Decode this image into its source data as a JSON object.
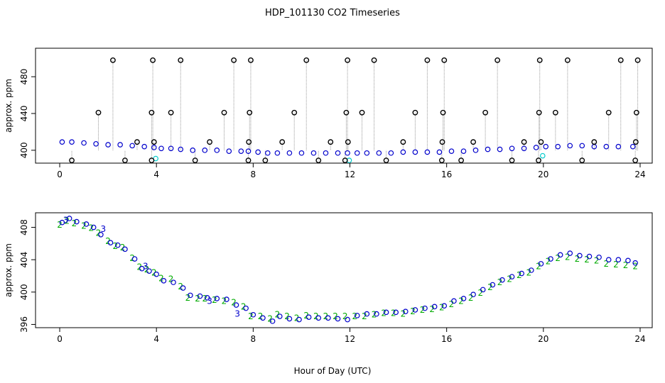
{
  "chart_data": [
    {
      "type": "scatter",
      "title": "HDP_101130  CO2 Timeseries",
      "xlabel": "",
      "ylabel": "approx. ppm",
      "xlim": [
        -1,
        24.5
      ],
      "ylim": [
        386,
        511
      ],
      "x_ticks": [
        0,
        4,
        8,
        12,
        16,
        20,
        24
      ],
      "y_ticks": [
        400,
        440,
        480
      ],
      "grid": false,
      "series": [
        {
          "color": "#0000cc",
          "marker": "circle",
          "x": [
            0.1,
            0.5,
            1.0,
            1.5,
            2.0,
            2.5,
            3.0,
            3.5,
            3.9,
            4.2,
            4.6,
            5.0,
            5.5,
            6.0,
            6.5,
            7.0,
            7.5,
            7.8,
            8.2,
            8.6,
            9.0,
            9.5,
            10.0,
            10.5,
            11.0,
            11.5,
            11.9,
            12.3,
            12.7,
            13.2,
            13.7,
            14.2,
            14.7,
            15.2,
            15.7,
            16.2,
            16.7,
            17.2,
            17.7,
            18.2,
            18.7,
            19.2,
            19.7,
            20.1,
            20.6,
            21.1,
            21.6,
            22.1,
            22.6,
            23.1,
            23.7
          ],
          "y": [
            409,
            409,
            408,
            407,
            406,
            406,
            405,
            404,
            403,
            402,
            402,
            401,
            400,
            400,
            400,
            399,
            399,
            399,
            398,
            397,
            397,
            397,
            397,
            397,
            397,
            397,
            397,
            397,
            397,
            397,
            397,
            398,
            398,
            398,
            398,
            399,
            399,
            400,
            401,
            401,
            402,
            402,
            403,
            404,
            404,
            405,
            405,
            404,
            404,
            404,
            404
          ]
        },
        {
          "color": "#00cccc",
          "marker": "circle",
          "x": [
            3.97,
            11.97,
            19.97
          ],
          "y": [
            391,
            389,
            394
          ]
        },
        {
          "color": "#000000",
          "marker": "circle",
          "x": [
            0.5,
            1.6,
            2.2,
            2.7,
            3.2,
            3.8,
            3.8,
            3.85,
            3.9,
            4.6,
            5.0,
            5.6,
            6.2,
            6.8,
            7.2,
            7.8,
            7.82,
            7.85,
            7.9,
            8.5,
            9.2,
            9.7,
            10.2,
            10.7,
            11.2,
            11.8,
            11.85,
            11.9,
            11.92,
            12.5,
            13.0,
            13.5,
            14.2,
            14.7,
            15.2,
            15.8,
            15.82,
            15.85,
            15.9,
            16.6,
            17.1,
            17.6,
            18.1,
            18.7,
            19.2,
            19.8,
            19.82,
            19.85,
            19.9,
            20.5,
            21.0,
            21.6,
            22.1,
            22.7,
            23.2,
            23.8,
            23.82,
            23.85,
            23.9
          ],
          "y": [
            389,
            441,
            498,
            389,
            409,
            389,
            441,
            498,
            409,
            441,
            498,
            389,
            409,
            441,
            498,
            389,
            409,
            441,
            498,
            389,
            409,
            441,
            498,
            389,
            409,
            389,
            441,
            498,
            409,
            441,
            498,
            389,
            409,
            441,
            498,
            389,
            409,
            441,
            498,
            389,
            409,
            441,
            498,
            389,
            409,
            389,
            441,
            498,
            409,
            441,
            498,
            389,
            409,
            441,
            498,
            389,
            409,
            441,
            498
          ]
        }
      ]
    },
    {
      "type": "scatter",
      "title": "",
      "xlabel": "Hour of Day (UTC)",
      "ylabel": "approx. ppm",
      "xlim": [
        -1,
        24.5
      ],
      "ylim": [
        395.6,
        409.8
      ],
      "x_ticks": [
        0,
        4,
        8,
        12,
        16,
        20,
        24
      ],
      "y_ticks": [
        396,
        400,
        404,
        408
      ],
      "grid": false,
      "series": [
        {
          "color": "#00aa00",
          "marker": "2",
          "x": [
            0.0,
            0.3,
            0.6,
            1.0,
            1.3,
            1.6,
            2.0,
            2.3,
            2.6,
            3.0,
            3.3,
            3.6,
            3.9,
            4.2,
            4.6,
            5.0,
            5.3,
            5.7,
            6.0,
            6.4,
            6.8,
            7.2,
            7.6,
            7.9,
            8.3,
            8.7,
            9.0,
            9.4,
            9.8,
            10.2,
            10.6,
            11.0,
            11.4,
            11.8,
            12.2,
            12.6,
            13.0,
            13.4,
            13.8,
            14.2,
            14.6,
            15.0,
            15.4,
            15.8,
            16.2,
            16.6,
            17.0,
            17.4,
            17.8,
            18.2,
            18.6,
            19.0,
            19.4,
            19.8,
            20.2,
            20.6,
            21.0,
            21.4,
            21.8,
            22.2,
            22.6,
            23.0,
            23.4,
            23.8
          ],
          "y": [
            408.3,
            408.8,
            408.5,
            408.2,
            407.9,
            407.3,
            406.3,
            405.7,
            405.5,
            404.2,
            403.1,
            402.8,
            402.4,
            401.7,
            401.6,
            400.7,
            399.3,
            399.2,
            399.2,
            399.0,
            398.9,
            398.7,
            398.2,
            397.0,
            397.0,
            396.7,
            397.2,
            397.0,
            396.8,
            397.1,
            397.0,
            397.0,
            397.0,
            397.0,
            397.0,
            397.0,
            397.2,
            397.4,
            397.4,
            397.3,
            397.6,
            397.8,
            397.9,
            398.1,
            398.5,
            398.9,
            399.3,
            399.9,
            400.6,
            401.2,
            401.6,
            402.1,
            402.4,
            403.2,
            403.8,
            404.2,
            404.3,
            404.1,
            404.0,
            403.9,
            403.5,
            403.4,
            403.3,
            403.2
          ]
        },
        {
          "color": "#0000cc",
          "marker": "circle",
          "x": [
            0.1,
            0.4,
            0.7,
            1.1,
            1.4,
            1.7,
            2.1,
            2.4,
            2.7,
            3.1,
            3.4,
            3.7,
            4.0,
            4.3,
            4.7,
            5.1,
            5.4,
            5.8,
            6.1,
            6.5,
            6.9,
            7.3,
            7.7,
            8.0,
            8.4,
            8.8,
            9.1,
            9.5,
            9.9,
            10.3,
            10.7,
            11.1,
            11.5,
            11.9,
            12.3,
            12.7,
            13.1,
            13.5,
            13.9,
            14.3,
            14.7,
            15.1,
            15.5,
            15.9,
            16.3,
            16.7,
            17.1,
            17.5,
            17.9,
            18.3,
            18.7,
            19.1,
            19.5,
            19.9,
            20.3,
            20.7,
            21.1,
            21.5,
            21.9,
            22.3,
            22.7,
            23.1,
            23.5,
            23.8
          ],
          "y": [
            408.6,
            409.1,
            408.7,
            408.4,
            408.0,
            407.1,
            406.1,
            405.8,
            405.3,
            404.1,
            402.9,
            402.6,
            402.2,
            401.4,
            401.2,
            400.5,
            399.6,
            399.5,
            399.3,
            399.2,
            399.1,
            398.4,
            398.0,
            397.2,
            396.8,
            396.4,
            397.0,
            396.7,
            396.6,
            396.9,
            396.8,
            396.8,
            396.7,
            396.6,
            397.1,
            397.3,
            397.3,
            397.5,
            397.5,
            397.6,
            397.8,
            398.0,
            398.2,
            398.3,
            398.9,
            399.2,
            399.7,
            400.3,
            400.9,
            401.5,
            401.9,
            402.3,
            402.7,
            403.5,
            404.1,
            404.6,
            404.8,
            404.5,
            404.4,
            404.3,
            404.0,
            404.0,
            403.9,
            403.6
          ]
        },
        {
          "color": "#0000cc",
          "marker": "3",
          "x": [
            0.25,
            1.8,
            3.55,
            6.2,
            7.35
          ],
          "y": [
            408.9,
            407.8,
            403.2,
            398.9,
            397.3
          ]
        }
      ]
    }
  ]
}
